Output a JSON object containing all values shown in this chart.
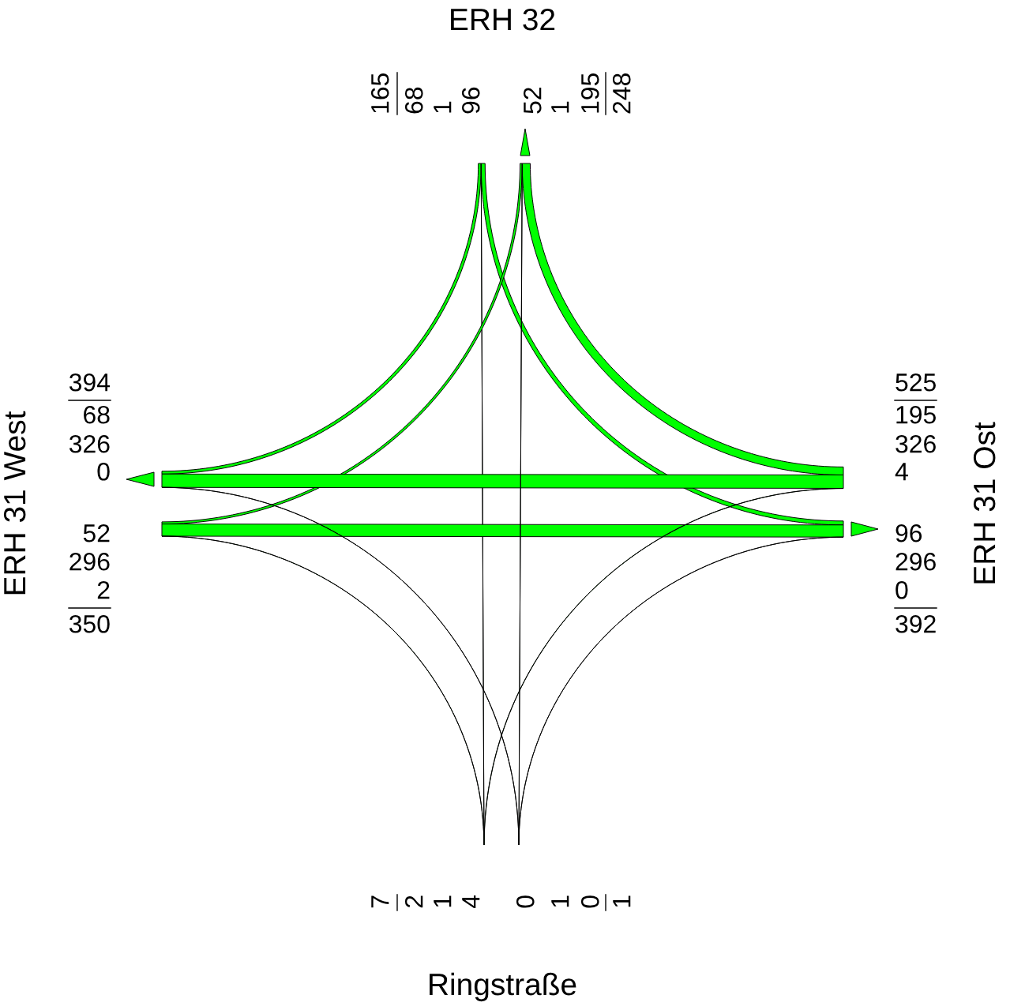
{
  "chart_data": {
    "type": "other",
    "categories": [
      "ERH 32",
      "ERH 31 West",
      "ERH 31 Ost",
      "Ringstraße"
    ],
    "series": [
      {
        "color": "#00ff00",
        "values": [
          null,
          68,
          96,
          1
        ]
      },
      {
        "color": "#00ff00",
        "values": [
          52,
          null,
          296,
          2
        ]
      },
      {
        "color": "#00ff00",
        "values": [
          195,
          326,
          null,
          4
        ]
      },
      {
        "color": "#00ff00",
        "values": [
          1,
          0,
          0,
          null
        ]
      },
      {
        "color": "#00ff00",
        "values": [
          null,
          52,
          195,
          1
        ]
      },
      {
        "color": "#00ff00",
        "values": [
          68,
          null,
          326,
          0
        ]
      },
      {
        "color": "#00ff00",
        "values": [
          96,
          296,
          null,
          0
        ]
      },
      {
        "values": [
          1,
          2,
          4,
          null
        ]
      }
    ],
    "data_labels": true,
    "totals": [
      "165",
      "248",
      "350",
      "394",
      "525",
      "392",
      "1",
      "7"
    ]
  }
}
